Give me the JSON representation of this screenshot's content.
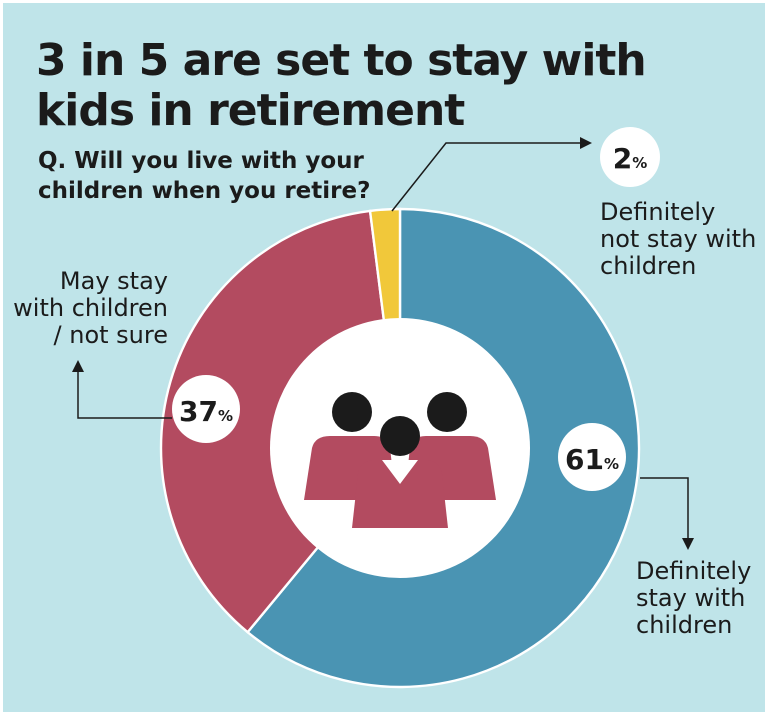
{
  "title": "3 in 5 are set to stay with kids in retirement",
  "question": "Q. Will you live with your children when you retire?",
  "colors": {
    "background": "#bfe4e9",
    "definitely_stay": "#4a94b3",
    "may_stay": "#b34b60",
    "definitely_not": "#f1c83a",
    "people_head": "#1b1b1b",
    "people_body": "#b34b60"
  },
  "icon": "people-group-icon",
  "chart_data": {
    "type": "pie",
    "title": "3 in 5 are set to stay with kids in retirement",
    "subtitle": "Q. Will you live with your children when you retire?",
    "unit": "%",
    "slices": [
      {
        "label": "Definitely stay with children",
        "value": 61,
        "display": "61",
        "color": "#4a94b3"
      },
      {
        "label": "May stay with children / not sure",
        "value": 37,
        "display": "37",
        "color": "#b34b60"
      },
      {
        "label": "Definitely not stay with children",
        "value": 2,
        "display": "2",
        "color": "#f1c83a"
      }
    ],
    "callouts": {
      "definitely_stay": [
        "Definitely",
        "stay with",
        "children"
      ],
      "may_stay": [
        "May stay",
        "with children",
        "/ not sure"
      ],
      "definitely_not": [
        "Definitely",
        "not stay with",
        "children"
      ]
    }
  }
}
